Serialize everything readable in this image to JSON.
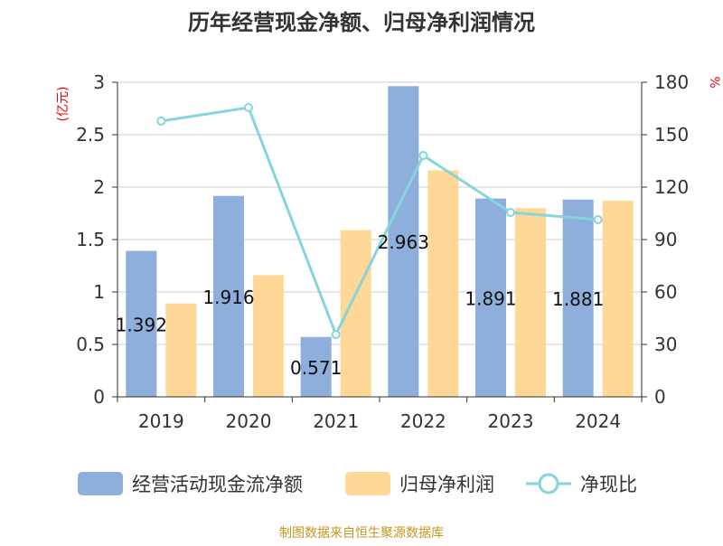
{
  "chart_data": {
    "type": "bar",
    "title": "历年经营现金净额、归母净利润情况",
    "ylabel": "(亿元)",
    "y2label": "%",
    "categories": [
      "2019",
      "2020",
      "2021",
      "2022",
      "2023",
      "2024"
    ],
    "ylim": [
      0,
      3
    ],
    "yticks": [
      "0",
      "0.5",
      "1",
      "1.5",
      "2",
      "2.5",
      "3"
    ],
    "y2lim": [
      0,
      180
    ],
    "y2ticks": [
      "0",
      "30",
      "60",
      "90",
      "120",
      "150",
      "180"
    ],
    "series": [
      {
        "name": "经营活动现金流净额",
        "type": "bar",
        "color": "#8eaedb",
        "values": [
          1.392,
          1.916,
          0.571,
          2.963,
          1.891,
          1.881
        ],
        "labels": [
          "1.392",
          "1.916",
          "0.571",
          "2.963",
          "1.891",
          "1.881"
        ]
      },
      {
        "name": "归母净利润",
        "type": "bar",
        "color": "#ffd797",
        "values": [
          0.89,
          1.16,
          1.59,
          2.16,
          1.8,
          1.87
        ]
      },
      {
        "name": "净现比",
        "type": "line",
        "axis": "right",
        "color": "#86d4dc",
        "values": [
          157.8,
          165.5,
          35.7,
          138.1,
          105.5,
          101.4
        ]
      }
    ],
    "grid": true,
    "legend": "bottom"
  },
  "footer": "制图数据来自恒生聚源数据库"
}
